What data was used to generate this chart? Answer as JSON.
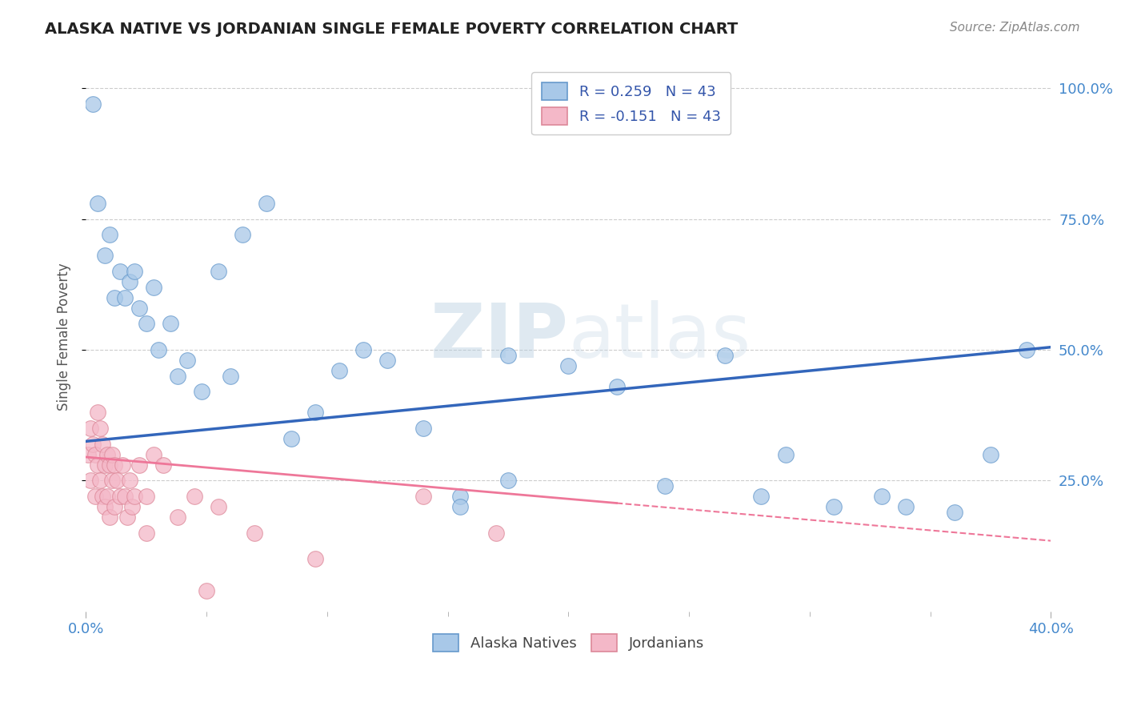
{
  "title": "ALASKA NATIVE VS JORDANIAN SINGLE FEMALE POVERTY CORRELATION CHART",
  "source": "Source: ZipAtlas.com",
  "ylabel": "Single Female Poverty",
  "yticks": [
    "25.0%",
    "50.0%",
    "75.0%",
    "100.0%"
  ],
  "ytick_vals": [
    0.25,
    0.5,
    0.75,
    1.0
  ],
  "xlim": [
    0.0,
    0.4
  ],
  "ylim": [
    0.0,
    1.05
  ],
  "watermark_zip": "ZIP",
  "watermark_atlas": "atlas",
  "alaska_color": "#a8c8e8",
  "alaska_edge_color": "#6699cc",
  "jordan_color": "#f4b8c8",
  "jordan_edge_color": "#dd8899",
  "alaska_line_color": "#3366bb",
  "jordan_line_color": "#ee7799",
  "background_color": "#ffffff",
  "grid_color": "#cccccc",
  "alaska_line_y0": 0.325,
  "alaska_line_y1": 0.505,
  "jordan_line_y0": 0.295,
  "jordan_line_y1": 0.135,
  "alaska_x": [
    0.003,
    0.005,
    0.008,
    0.01,
    0.012,
    0.014,
    0.016,
    0.018,
    0.02,
    0.022,
    0.025,
    0.028,
    0.03,
    0.035,
    0.038,
    0.042,
    0.048,
    0.055,
    0.06,
    0.065,
    0.075,
    0.085,
    0.095,
    0.105,
    0.115,
    0.125,
    0.14,
    0.155,
    0.175,
    0.2,
    0.22,
    0.24,
    0.265,
    0.29,
    0.31,
    0.34,
    0.36,
    0.375,
    0.39,
    0.155,
    0.28,
    0.33,
    0.175
  ],
  "alaska_y": [
    0.97,
    0.78,
    0.68,
    0.72,
    0.6,
    0.65,
    0.6,
    0.63,
    0.65,
    0.58,
    0.55,
    0.62,
    0.5,
    0.55,
    0.45,
    0.48,
    0.42,
    0.65,
    0.45,
    0.72,
    0.78,
    0.33,
    0.38,
    0.46,
    0.5,
    0.48,
    0.35,
    0.22,
    0.49,
    0.47,
    0.43,
    0.24,
    0.49,
    0.3,
    0.2,
    0.2,
    0.19,
    0.3,
    0.5,
    0.2,
    0.22,
    0.22,
    0.25
  ],
  "jordan_x": [
    0.001,
    0.002,
    0.002,
    0.003,
    0.004,
    0.004,
    0.005,
    0.005,
    0.006,
    0.006,
    0.007,
    0.007,
    0.008,
    0.008,
    0.009,
    0.009,
    0.01,
    0.01,
    0.011,
    0.011,
    0.012,
    0.012,
    0.013,
    0.014,
    0.015,
    0.016,
    0.017,
    0.018,
    0.019,
    0.02,
    0.022,
    0.025,
    0.028,
    0.032,
    0.038,
    0.045,
    0.055,
    0.07,
    0.095,
    0.025,
    0.17,
    0.05,
    0.14
  ],
  "jordan_y": [
    0.3,
    0.35,
    0.25,
    0.32,
    0.3,
    0.22,
    0.38,
    0.28,
    0.35,
    0.25,
    0.32,
    0.22,
    0.28,
    0.2,
    0.3,
    0.22,
    0.28,
    0.18,
    0.25,
    0.3,
    0.28,
    0.2,
    0.25,
    0.22,
    0.28,
    0.22,
    0.18,
    0.25,
    0.2,
    0.22,
    0.28,
    0.22,
    0.3,
    0.28,
    0.18,
    0.22,
    0.2,
    0.15,
    0.1,
    0.15,
    0.15,
    0.04,
    0.22
  ]
}
